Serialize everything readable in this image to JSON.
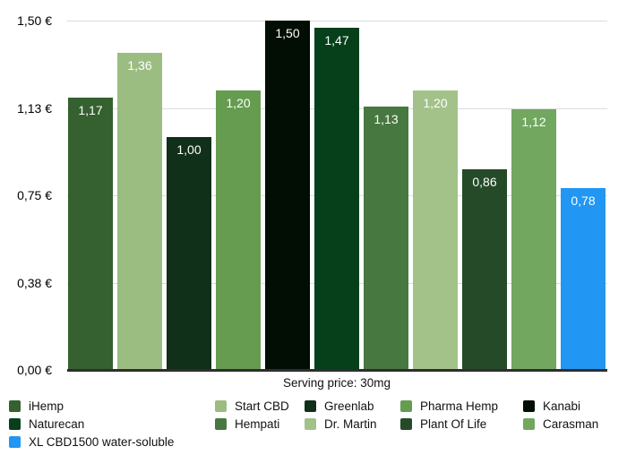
{
  "chart_data": {
    "type": "bar",
    "title": "",
    "x_axis_label": "Serving price: 30mg",
    "ylabel": "",
    "ylim": [
      0,
      1.5
    ],
    "grid": true,
    "legend_position": "bottom",
    "currency_suffix": "€",
    "y_ticks": [
      {
        "label": "1,50 €",
        "value": 1.5
      },
      {
        "label": "1,13 €",
        "value": 1.125
      },
      {
        "label": "0,75 €",
        "value": 0.75
      },
      {
        "label": "0,38 €",
        "value": 0.375
      },
      {
        "label": "0,00 €",
        "value": 0
      }
    ],
    "series": [
      {
        "name": "iHemp",
        "value": 1.17,
        "label": "1,17",
        "color": "#34612f"
      },
      {
        "name": "Start CBD",
        "value": 1.36,
        "label": "1,36",
        "color": "#9bbd82"
      },
      {
        "name": "Greenlab",
        "value": 1.0,
        "label": "1,00",
        "color": "#10301a"
      },
      {
        "name": "Pharma Hemp",
        "value": 1.2,
        "label": "1,20",
        "color": "#659c50"
      },
      {
        "name": "Kanabi",
        "value": 1.5,
        "label": "1,50",
        "color": "#020d03"
      },
      {
        "name": "Naturecan",
        "value": 1.47,
        "label": "1,47",
        "color": "#05401b"
      },
      {
        "name": "Hempati",
        "value": 1.13,
        "label": "1,13",
        "color": "#47783f"
      },
      {
        "name": "Dr. Martin",
        "value": 1.2,
        "label": "1,20",
        "color": "#a2c289"
      },
      {
        "name": "Plant Of Life",
        "value": 0.86,
        "label": "0,86",
        "color": "#254a28"
      },
      {
        "name": "Carasman",
        "value": 1.12,
        "label": "1,12",
        "color": "#71a75f"
      },
      {
        "name": "XL CBD1500 water-soluble",
        "value": 0.78,
        "label": "0,78",
        "color": "#2196f3"
      }
    ],
    "legend_columns": [
      [
        "iHemp",
        "Naturecan",
        "XL CBD1500 water-soluble"
      ],
      [
        "Start CBD",
        "Hempati"
      ],
      [
        "Greenlab",
        "Dr. Martin"
      ],
      [
        "Pharma Hemp",
        "Plant Of Life"
      ],
      [
        "Kanabi",
        "Carasman"
      ]
    ]
  }
}
